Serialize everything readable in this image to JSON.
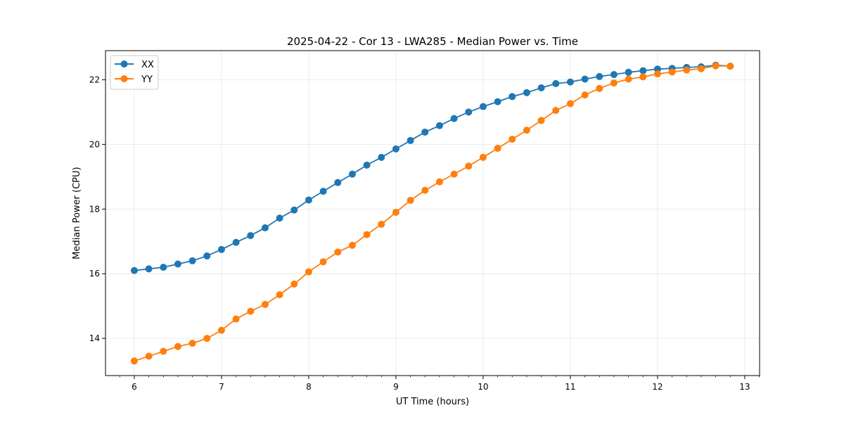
{
  "chart_data": {
    "type": "line",
    "title": "2025-04-22 - Cor 13 - LWA285 - Median Power vs. Time",
    "xlabel": "UT Time (hours)",
    "ylabel": "Median Power (CPU)",
    "xlim": [
      5.67,
      13.17
    ],
    "ylim": [
      12.85,
      22.9
    ],
    "xticks": [
      6,
      7,
      8,
      9,
      10,
      11,
      12,
      13
    ],
    "yticks": [
      14,
      16,
      18,
      20,
      22
    ],
    "grid": true,
    "legend_position": "top-left",
    "x": [
      6.0,
      6.1667,
      6.3333,
      6.5,
      6.6667,
      6.8333,
      7.0,
      7.1667,
      7.3333,
      7.5,
      7.6667,
      7.8333,
      8.0,
      8.1667,
      8.3333,
      8.5,
      8.6667,
      8.8333,
      9.0,
      9.1667,
      9.3333,
      9.5,
      9.6667,
      9.8333,
      10.0,
      10.1667,
      10.3333,
      10.5,
      10.6667,
      10.8333,
      11.0,
      11.1667,
      11.3333,
      11.5,
      11.6667,
      11.8333,
      12.0,
      12.1667,
      12.3333,
      12.5,
      12.6667,
      12.8333
    ],
    "series": [
      {
        "name": "XX",
        "color": "#1f77b4",
        "values": [
          16.1,
          16.15,
          16.2,
          16.3,
          16.4,
          16.55,
          16.75,
          16.97,
          17.18,
          17.42,
          17.72,
          17.97,
          18.28,
          18.55,
          18.82,
          19.08,
          19.36,
          19.6,
          19.86,
          20.12,
          20.38,
          20.58,
          20.8,
          21.0,
          21.17,
          21.32,
          21.48,
          21.6,
          21.75,
          21.88,
          21.93,
          22.02,
          22.1,
          22.16,
          22.23,
          22.28,
          22.33,
          22.35,
          22.38,
          22.4,
          22.45,
          22.42
        ]
      },
      {
        "name": "YY",
        "color": "#ff7f0e",
        "values": [
          13.3,
          13.45,
          13.6,
          13.75,
          13.85,
          14.0,
          14.25,
          14.6,
          14.84,
          15.05,
          15.35,
          15.68,
          16.06,
          16.37,
          16.67,
          16.88,
          17.21,
          17.53,
          17.9,
          18.27,
          18.58,
          18.84,
          19.08,
          19.33,
          19.6,
          19.88,
          20.16,
          20.44,
          20.74,
          21.05,
          21.26,
          21.53,
          21.73,
          21.9,
          22.02,
          22.09,
          22.18,
          22.24,
          22.3,
          22.34,
          22.43,
          22.42
        ]
      }
    ]
  }
}
